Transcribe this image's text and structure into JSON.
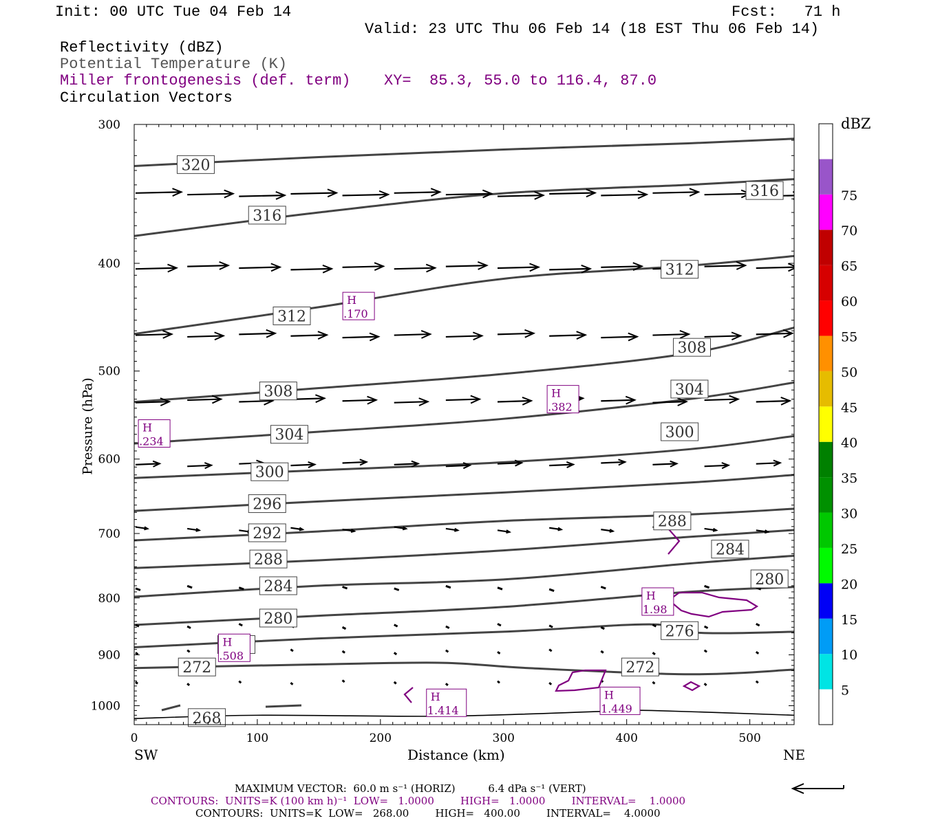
{
  "header": {
    "init": "Init: 00 UTC Tue 04 Feb 14",
    "fcst": "Fcst:   71 h",
    "valid": "Valid: 23 UTC Thu 06 Feb 14 (18 EST Thu 06 Feb 14)"
  },
  "fields": {
    "reflectivity": "Reflectivity (dBZ)",
    "theta": "Potential Temperature (K)",
    "miller": "Miller frontogenesis (def. term)",
    "xy": "XY=  85.3, 55.0 to 116.4, 87.0",
    "vectors": "Circulation Vectors"
  },
  "colors": {
    "theta": "#444444",
    "miller": "#800080",
    "vectors": "#000000"
  },
  "chart_data": {
    "type": "line",
    "xlabel": "Distance (km)",
    "ylabel": "Pressure (hPa)",
    "xlim": [
      0,
      536
    ],
    "ylim": [
      1040,
      300
    ],
    "y_scale": "log",
    "xticks": [
      0,
      100,
      200,
      300,
      400,
      500
    ],
    "yticks": [
      300,
      400,
      500,
      600,
      700,
      800,
      900,
      1000
    ],
    "x_end_labels": {
      "left": "SW",
      "right": "NE"
    },
    "theta_contours": [
      {
        "label": "320",
        "x": [
          0,
          150,
          300,
          450,
          536
        ],
        "y": [
          327,
          321,
          316,
          312,
          309
        ]
      },
      {
        "label": "316",
        "x": [
          0,
          150,
          300,
          450,
          536
        ],
        "y": [
          378,
          360,
          346,
          340,
          336
        ]
      },
      {
        "label": "312",
        "x": [
          0,
          150,
          300,
          450,
          536
        ],
        "y": [
          463,
          438,
          413,
          402,
          394
        ]
      },
      {
        "label": "308",
        "x": [
          0,
          150,
          300,
          450,
          536
        ],
        "y": [
          533,
          518,
          503,
          482,
          457
        ]
      },
      {
        "label": "304",
        "x": [
          0,
          150,
          300,
          450,
          536
        ],
        "y": [
          581,
          567,
          552,
          530,
          512
        ]
      },
      {
        "label": "300",
        "x": [
          0,
          150,
          300,
          450,
          536
        ],
        "y": [
          624,
          614,
          604,
          588,
          572
        ]
      },
      {
        "label": "296",
        "x": [
          0,
          150,
          300,
          450,
          536
        ],
        "y": [
          668,
          655,
          643,
          630,
          620
        ]
      },
      {
        "label": "292",
        "x": [
          0,
          150,
          300,
          450,
          536
        ],
        "y": [
          710,
          697,
          682,
          673,
          665
        ]
      },
      {
        "label": "288",
        "x": [
          0,
          150,
          300,
          450,
          536
        ],
        "y": [
          752,
          740,
          725,
          705,
          695
        ]
      },
      {
        "label": "284",
        "x": [
          0,
          150,
          300,
          450,
          536
        ],
        "y": [
          798,
          780,
          770,
          745,
          733
        ]
      },
      {
        "label": "280",
        "x": [
          0,
          150,
          300,
          450,
          536
        ],
        "y": [
          846,
          830,
          815,
          790,
          782
        ]
      },
      {
        "label": "276",
        "x": [
          0,
          150,
          300,
          420,
          460,
          536
        ],
        "y": [
          886,
          870,
          858,
          845,
          860,
          858
        ]
      },
      {
        "label": "272",
        "x": [
          0,
          150,
          250,
          320,
          450,
          536
        ],
        "y": [
          925,
          918,
          915,
          925,
          937,
          928
        ]
      },
      {
        "label": "268",
        "x": [
          0,
          100,
          250,
          380,
          420,
          536
        ],
        "y": [
          1027,
          1020,
          1022,
          1012,
          1010,
          1020
        ]
      }
    ],
    "theta_labels": [
      {
        "text": "320",
        "x": 50,
        "p": 326
      },
      {
        "text": "316",
        "x": 108,
        "p": 362
      },
      {
        "text": "316",
        "x": 512,
        "p": 344
      },
      {
        "text": "312",
        "x": 128,
        "p": 446
      },
      {
        "text": "312",
        "x": 443,
        "p": 405
      },
      {
        "text": "308",
        "x": 117,
        "p": 521
      },
      {
        "text": "308",
        "x": 453,
        "p": 476
      },
      {
        "text": "304",
        "x": 126,
        "p": 570
      },
      {
        "text": "304",
        "x": 451,
        "p": 519
      },
      {
        "text": "300",
        "x": 110,
        "p": 616
      },
      {
        "text": "300",
        "x": 443,
        "p": 567
      },
      {
        "text": "296",
        "x": 108,
        "p": 658
      },
      {
        "text": "292",
        "x": 108,
        "p": 699
      },
      {
        "text": "288",
        "x": 109,
        "p": 738
      },
      {
        "text": "288",
        "x": 437,
        "p": 682
      },
      {
        "text": "284",
        "x": 117,
        "p": 780
      },
      {
        "text": "284",
        "x": 484,
        "p": 723
      },
      {
        "text": "280",
        "x": 117,
        "p": 834
      },
      {
        "text": "280",
        "x": 516,
        "p": 769
      },
      {
        "text": "276",
        "x": 83,
        "p": 881
      },
      {
        "text": "276",
        "x": 443,
        "p": 856
      },
      {
        "text": "272",
        "x": 51,
        "p": 923
      },
      {
        "text": "272",
        "x": 411,
        "p": 923
      },
      {
        "text": "268",
        "x": 59,
        "p": 1025
      }
    ],
    "frontogenesis_maxima": [
      {
        "label": "H",
        "value": ".170",
        "x": 175,
        "p": 437
      },
      {
        "label": "H",
        "value": ".382",
        "x": 341,
        "p": 530
      },
      {
        "label": "H",
        "value": ".234",
        "x": 9,
        "p": 569
      },
      {
        "label": "H",
        "value": "1.98",
        "x": 418,
        "p": 806
      },
      {
        "label": "H",
        "value": ".508",
        "x": 74,
        "p": 887
      },
      {
        "label": "H",
        "value": "1.414",
        "x": 243,
        "p": 994
      },
      {
        "label": "H",
        "value": "1.449",
        "x": 384,
        "p": 990
      }
    ],
    "vector_rows": [
      {
        "p": 347,
        "mag": 0.95
      },
      {
        "p": 404,
        "mag": 0.85
      },
      {
        "p": 465,
        "mag": 0.75
      },
      {
        "p": 532,
        "mag": 0.7
      },
      {
        "p": 607,
        "mag": 0.5
      },
      {
        "p": 693,
        "mag": 0.25
      },
      {
        "p": 783,
        "mag": 0.1
      },
      {
        "p": 847,
        "mag": 0.07
      },
      {
        "p": 893,
        "mag": 0.05
      },
      {
        "p": 952,
        "mag": 0.03
      }
    ],
    "colorbar": {
      "title": "dBZ",
      "labels": [
        "5",
        "10",
        "15",
        "20",
        "25",
        "30",
        "35",
        "40",
        "45",
        "50",
        "55",
        "60",
        "65",
        "70",
        "75"
      ],
      "colors": [
        "#ffffff",
        "#00e4e4",
        "#009cf6",
        "#0000f6",
        "#00fa00",
        "#00c800",
        "#009000",
        "#008000",
        "#ffff00",
        "#e6bc00",
        "#ff9000",
        "#ff0000",
        "#d60000",
        "#c00000",
        "#ff00ff",
        "#9955c9",
        "#ffffff"
      ]
    }
  },
  "footer": {
    "line1": "MAXIMUM VECTOR:  60.0 m s⁻¹ (HORIZ)          6.4 dPa s⁻¹ (VERT)",
    "line2": "CONTOURS:  UNITS=K (100 km h)⁻¹  LOW=   1.0000        HIGH=   1.0000        INTERVAL=    1.0000",
    "line3": "CONTOURS:  UNITS=K  LOW=   268.00        HIGH=   400.00        INTERVAL=    4.0000"
  }
}
